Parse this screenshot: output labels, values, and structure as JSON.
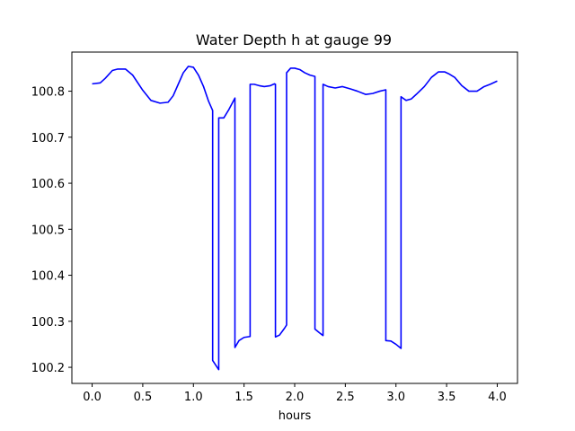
{
  "chart_data": {
    "type": "line",
    "title": "Water Depth h at gauge 99",
    "xlabel": "hours",
    "ylabel": "",
    "xlim": [
      -0.2,
      4.2
    ],
    "ylim": [
      100.165,
      100.885
    ],
    "xticks": [
      0.0,
      0.5,
      1.0,
      1.5,
      2.0,
      2.5,
      3.0,
      3.5,
      4.0
    ],
    "xtick_labels": [
      "0.0",
      "0.5",
      "1.0",
      "1.5",
      "2.0",
      "2.5",
      "3.0",
      "3.5",
      "4.0"
    ],
    "yticks": [
      100.2,
      100.3,
      100.4,
      100.5,
      100.6,
      100.7,
      100.8
    ],
    "ytick_labels": [
      "100.2",
      "100.3",
      "100.4",
      "100.5",
      "100.6",
      "100.7",
      "100.8"
    ],
    "grid": false,
    "legend": "none",
    "series": [
      {
        "color": "#0000ff",
        "x": [
          0.0,
          0.08,
          0.13,
          0.2,
          0.25,
          0.33,
          0.4,
          0.5,
          0.58,
          0.67,
          0.75,
          0.8,
          0.85,
          0.9,
          0.95,
          1.0,
          1.05,
          1.1,
          1.15,
          1.19,
          1.19,
          1.25,
          1.25,
          1.3,
          1.35,
          1.41,
          1.41,
          1.45,
          1.5,
          1.56,
          1.56,
          1.6,
          1.65,
          1.7,
          1.76,
          1.8,
          1.81,
          1.81,
          1.85,
          1.9,
          1.92,
          1.92,
          1.96,
          2.0,
          2.05,
          2.1,
          2.15,
          2.2,
          2.2,
          2.25,
          2.28,
          2.28,
          2.33,
          2.4,
          2.47,
          2.55,
          2.62,
          2.7,
          2.77,
          2.84,
          2.9,
          2.9,
          2.95,
          3.0,
          3.05,
          3.05,
          3.1,
          3.15,
          3.2,
          3.28,
          3.35,
          3.42,
          3.48,
          3.52,
          3.58,
          3.65,
          3.72,
          3.8,
          3.87,
          3.93,
          4.0
        ],
        "y": [
          100.816,
          100.818,
          100.828,
          100.845,
          100.848,
          100.848,
          100.835,
          100.802,
          100.78,
          100.774,
          100.776,
          100.79,
          100.815,
          100.84,
          100.854,
          100.852,
          100.835,
          100.81,
          100.778,
          100.758,
          100.215,
          100.195,
          100.742,
          100.742,
          100.76,
          100.785,
          100.243,
          100.258,
          100.265,
          100.267,
          100.815,
          100.815,
          100.812,
          100.81,
          100.812,
          100.816,
          100.815,
          100.266,
          100.27,
          100.285,
          100.292,
          100.84,
          100.85,
          100.85,
          100.847,
          100.84,
          100.835,
          100.832,
          100.283,
          100.274,
          100.269,
          100.815,
          100.81,
          100.807,
          100.81,
          100.805,
          100.8,
          100.793,
          100.795,
          100.8,
          100.803,
          100.258,
          100.257,
          100.25,
          100.241,
          100.788,
          100.78,
          100.783,
          100.793,
          100.81,
          100.83,
          100.842,
          100.842,
          100.838,
          100.83,
          100.812,
          100.8,
          100.8,
          100.81,
          100.815,
          100.822
        ]
      }
    ]
  }
}
